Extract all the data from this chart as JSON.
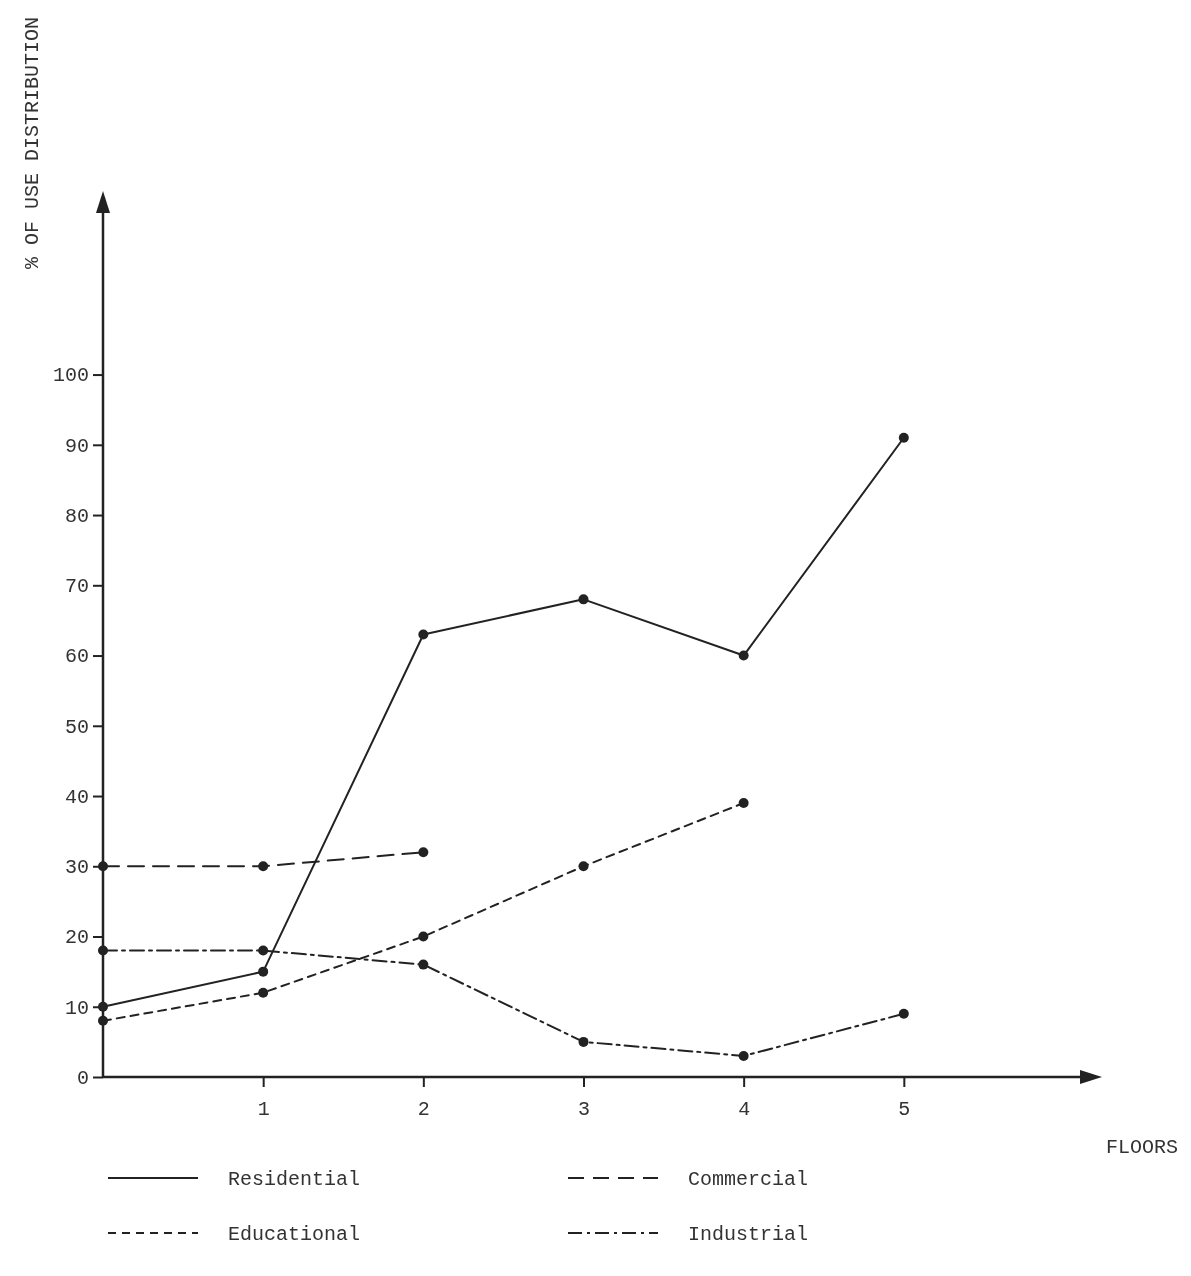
{
  "chart_data": {
    "type": "line",
    "xlabel": "FLOORS",
    "ylabel": "% OF USE DISTRIBUTION",
    "x": [
      0,
      1,
      2,
      3,
      4,
      5
    ],
    "series": [
      {
        "name": "Residential",
        "color": "#222222",
        "line_style": "solid",
        "values": [
          10,
          15,
          63,
          68,
          60,
          91
        ]
      },
      {
        "name": "Commercial",
        "color": "#222222",
        "line_style": "dashed",
        "values": [
          30,
          30,
          32,
          null,
          null,
          null
        ]
      },
      {
        "name": "Educational",
        "color": "#222222",
        "line_style": "dotted",
        "values": [
          8,
          12,
          20,
          30,
          39,
          null
        ]
      },
      {
        "name": "Industrial",
        "color": "#222222",
        "line_style": "dashdot",
        "values": [
          18,
          18,
          16,
          5,
          3,
          9
        ]
      }
    ],
    "xlim": [
      0,
      6.1
    ],
    "ylim": [
      0,
      123
    ],
    "xticks": [
      1,
      2,
      3,
      4,
      5
    ],
    "yticks": [
      0,
      10,
      20,
      30,
      40,
      50,
      60,
      70,
      80,
      90,
      100
    ],
    "marker": "circle",
    "grid": false,
    "legend": "bottom"
  }
}
